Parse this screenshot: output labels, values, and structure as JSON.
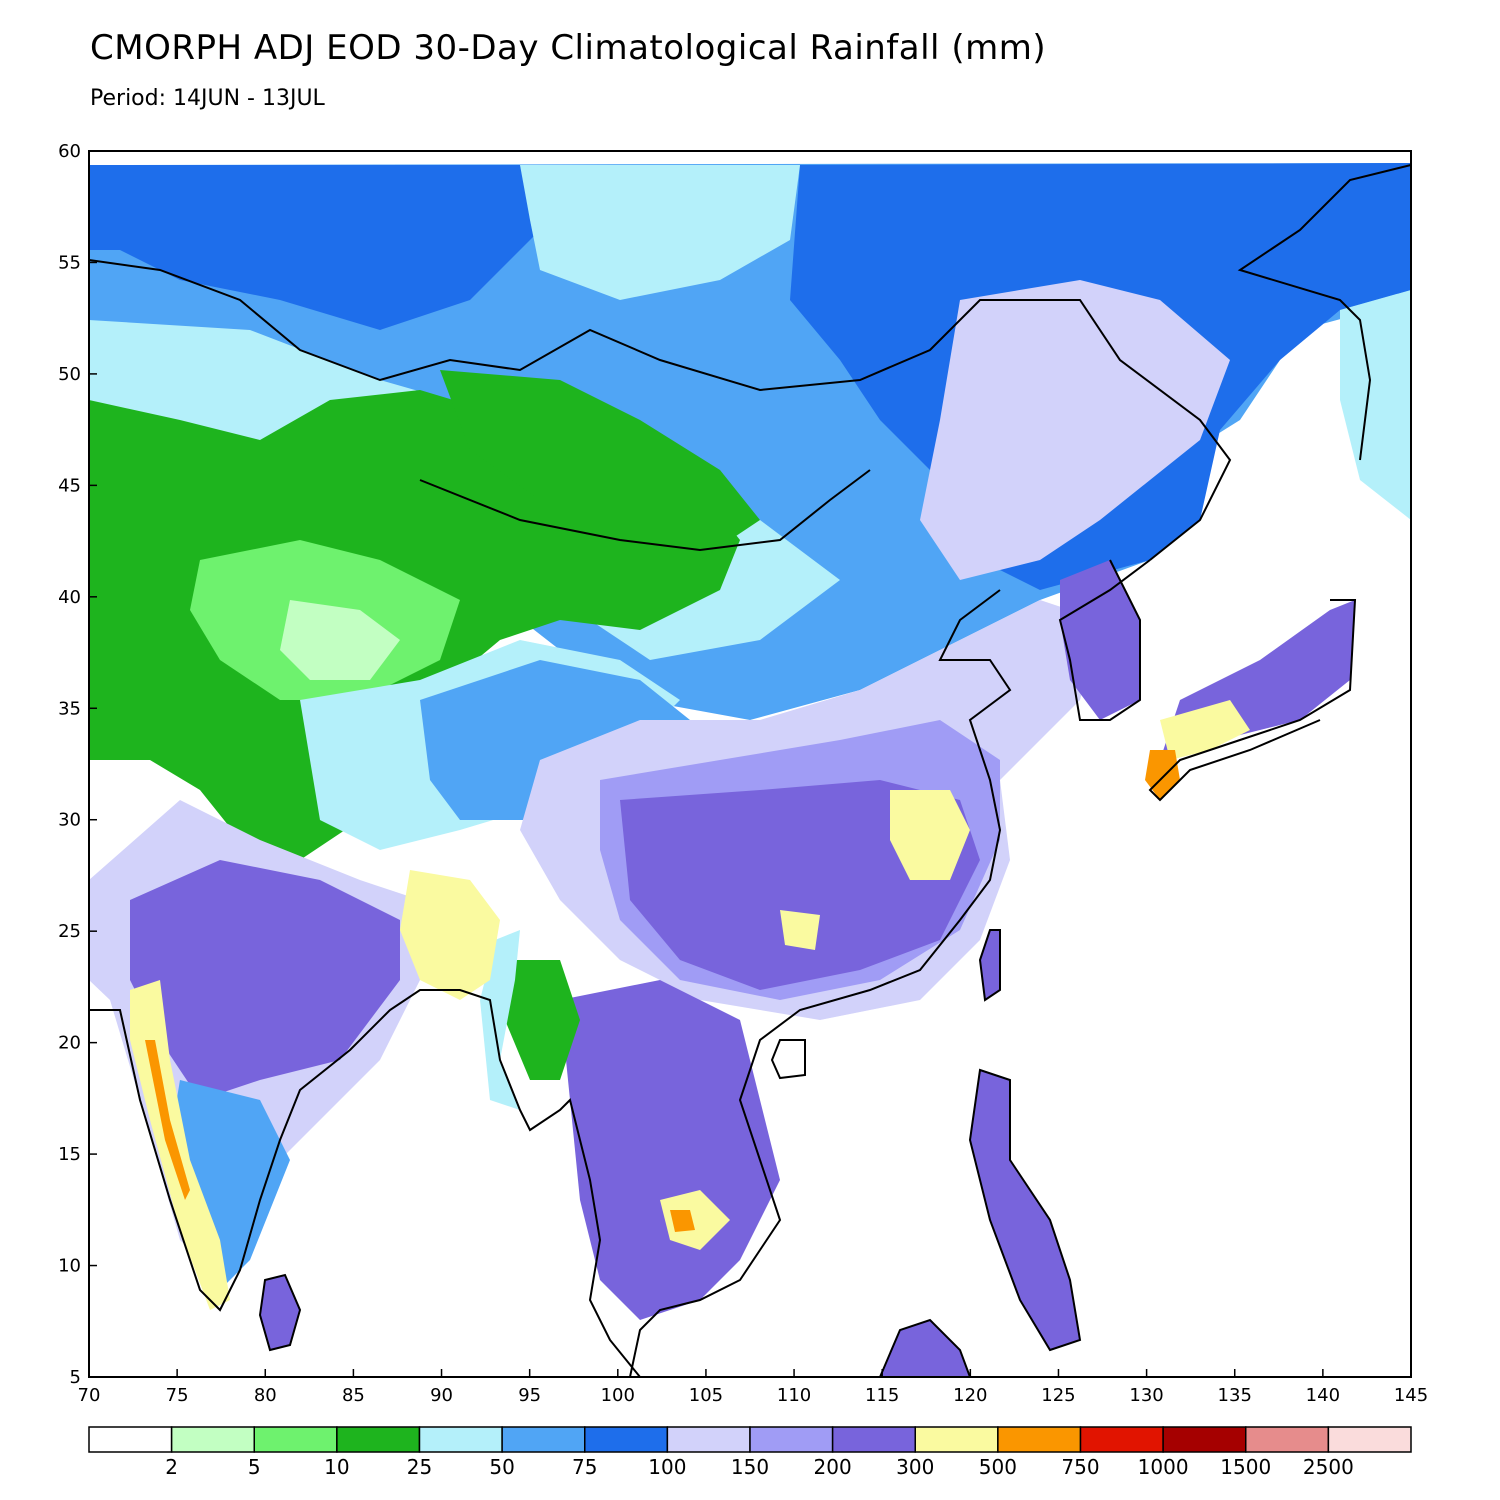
{
  "title": "CMORPH ADJ EOD 30-Day Climatological Rainfall (mm)",
  "subtitle": "Period: 14JUN - 13JUL",
  "map": {
    "lon_range": [
      70,
      145
    ],
    "lat_range": [
      5,
      60
    ],
    "x_ticks": [
      "70",
      "75",
      "80",
      "85",
      "90",
      "95",
      "100",
      "105",
      "110",
      "115",
      "120",
      "125",
      "130",
      "135",
      "140",
      "145"
    ],
    "y_ticks": [
      "60",
      "55",
      "50",
      "45",
      "40",
      "35",
      "30",
      "25",
      "20",
      "15",
      "10",
      "5"
    ]
  },
  "colorbar": {
    "colors": [
      "#ffffff",
      "#c2ffc2",
      "#6ef26e",
      "#1eb41e",
      "#b4f0fa",
      "#50a5f5",
      "#1e6eeb",
      "#d2d2fa",
      "#a09cf5",
      "#7864dc",
      "#fafaa0",
      "#fa9600",
      "#e11400",
      "#a50000",
      "#e68c8c",
      "#fadcdc"
    ],
    "labels": [
      "2",
      "5",
      "10",
      "25",
      "50",
      "75",
      "100",
      "150",
      "200",
      "300",
      "500",
      "750",
      "1000",
      "1500",
      "2500"
    ]
  }
}
